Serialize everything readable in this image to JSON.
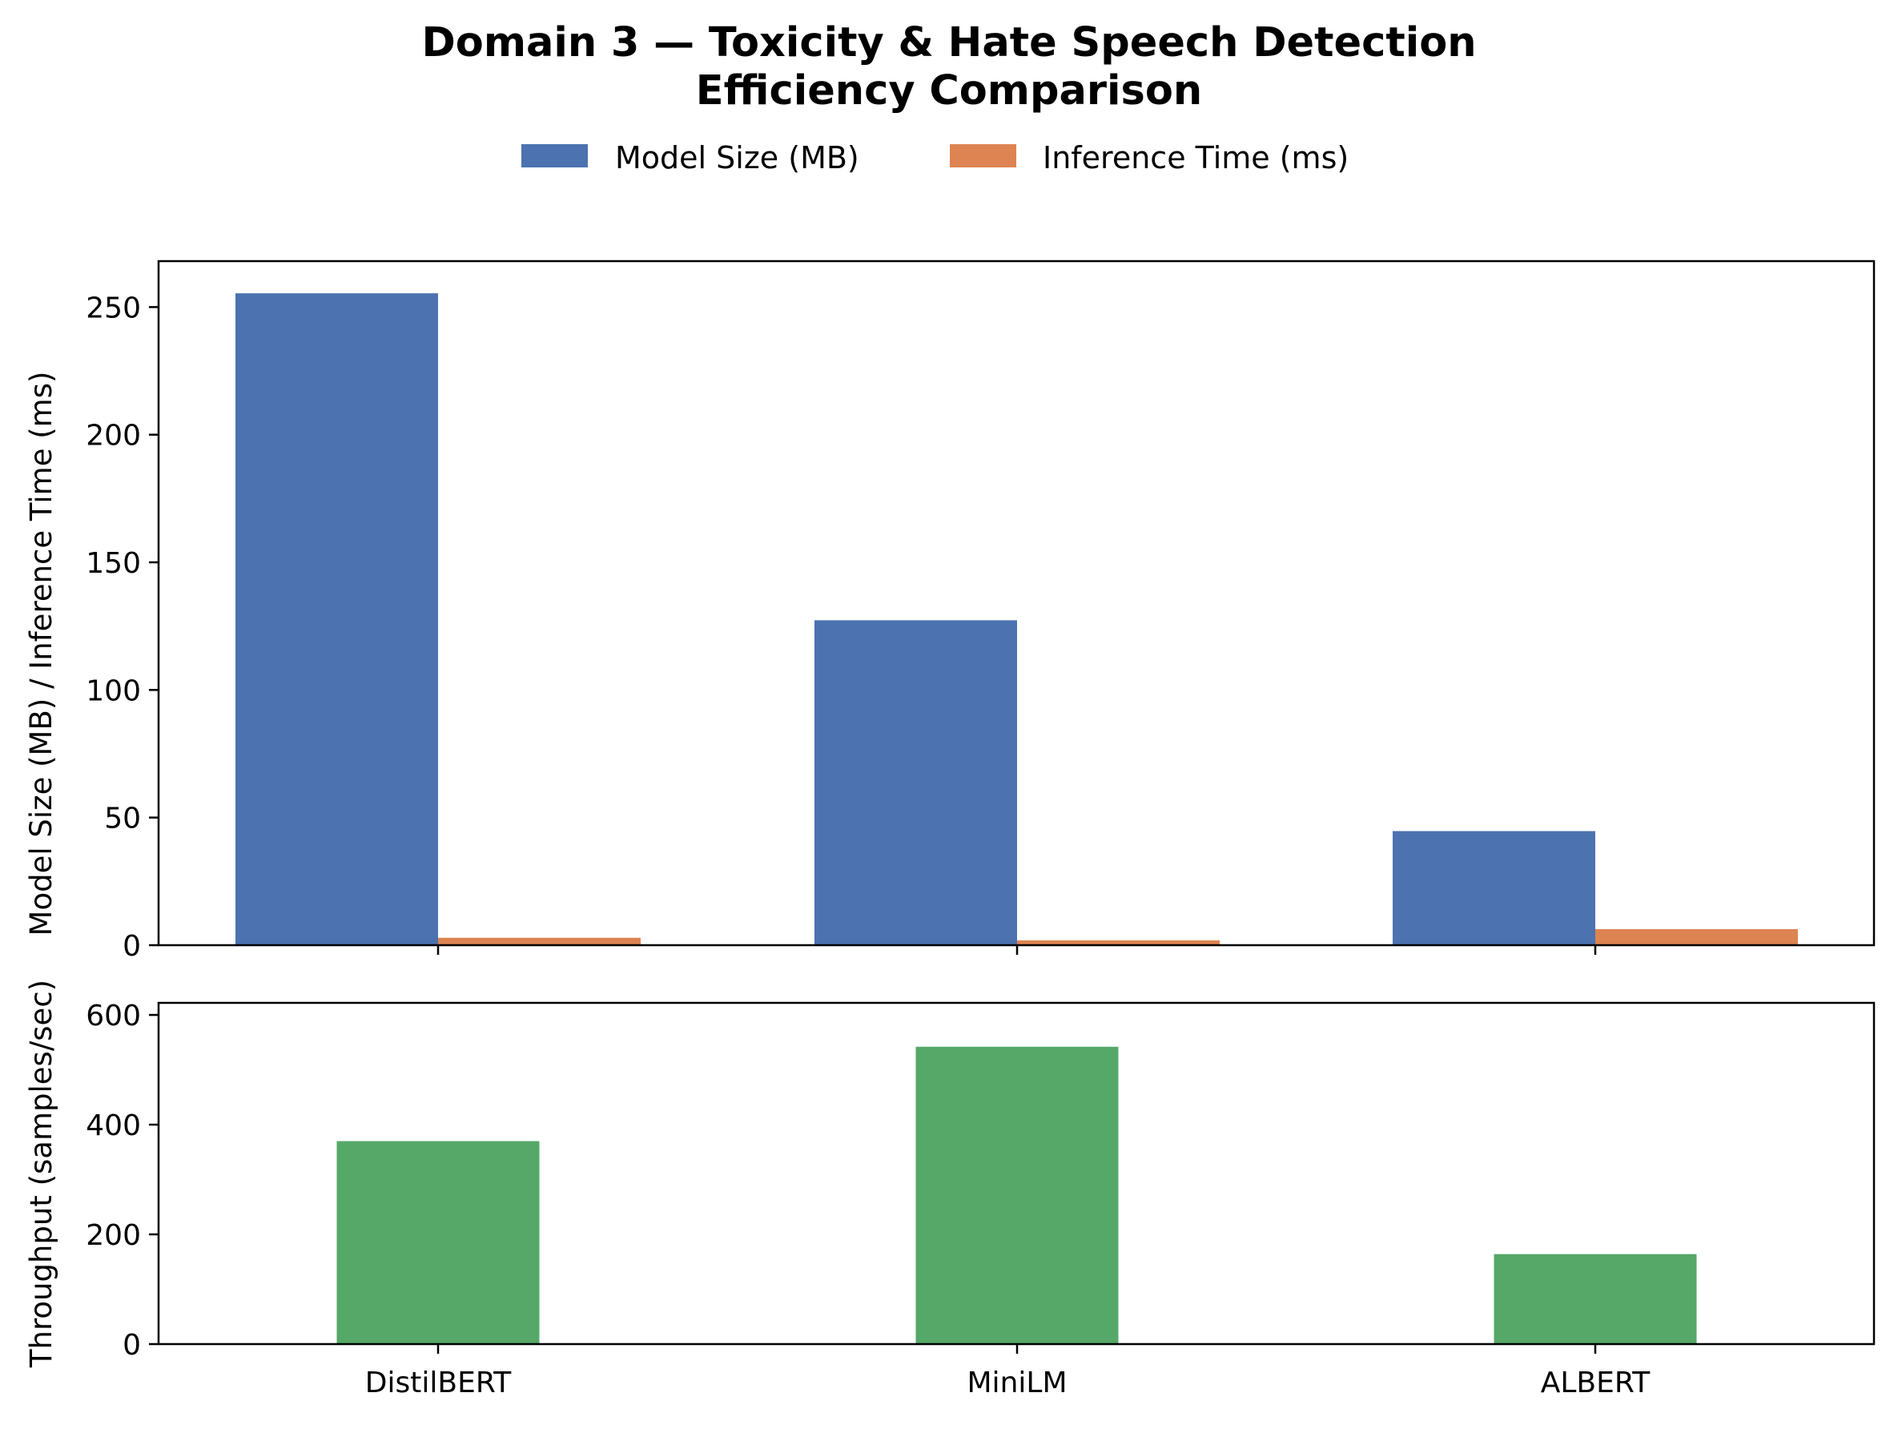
{
  "chart_data": [
    {
      "type": "bar",
      "title": "Domain 3 — Toxicity & Hate Speech Detection",
      "subtitle": "Efficiency Comparison",
      "categories": [
        "DistilBERT",
        "MiniLM",
        "ALBERT"
      ],
      "series": [
        {
          "name": "Model Size (MB)",
          "color": "#4c72b0",
          "values": [
            255.4,
            127.3,
            44.7
          ]
        },
        {
          "name": "Inference Time (ms)",
          "color": "#dd8452",
          "values": [
            2.9,
            1.9,
            6.3
          ]
        }
      ],
      "ylabel": "Model Size (MB) / Inference Time (ms)",
      "ylim": [
        0,
        268
      ],
      "yticks": [
        0,
        50,
        100,
        150,
        200,
        250
      ],
      "legend": "top-center",
      "grid": false
    },
    {
      "type": "bar",
      "categories": [
        "DistilBERT",
        "MiniLM",
        "ALBERT"
      ],
      "series": [
        {
          "name": "",
          "color": "#55a868",
          "values": [
            370,
            542,
            164
          ]
        }
      ],
      "ylabel": "Throughput (samples/sec)",
      "ylim": [
        0,
        622
      ],
      "yticks": [
        0,
        200,
        400,
        600
      ],
      "grid": false
    }
  ]
}
